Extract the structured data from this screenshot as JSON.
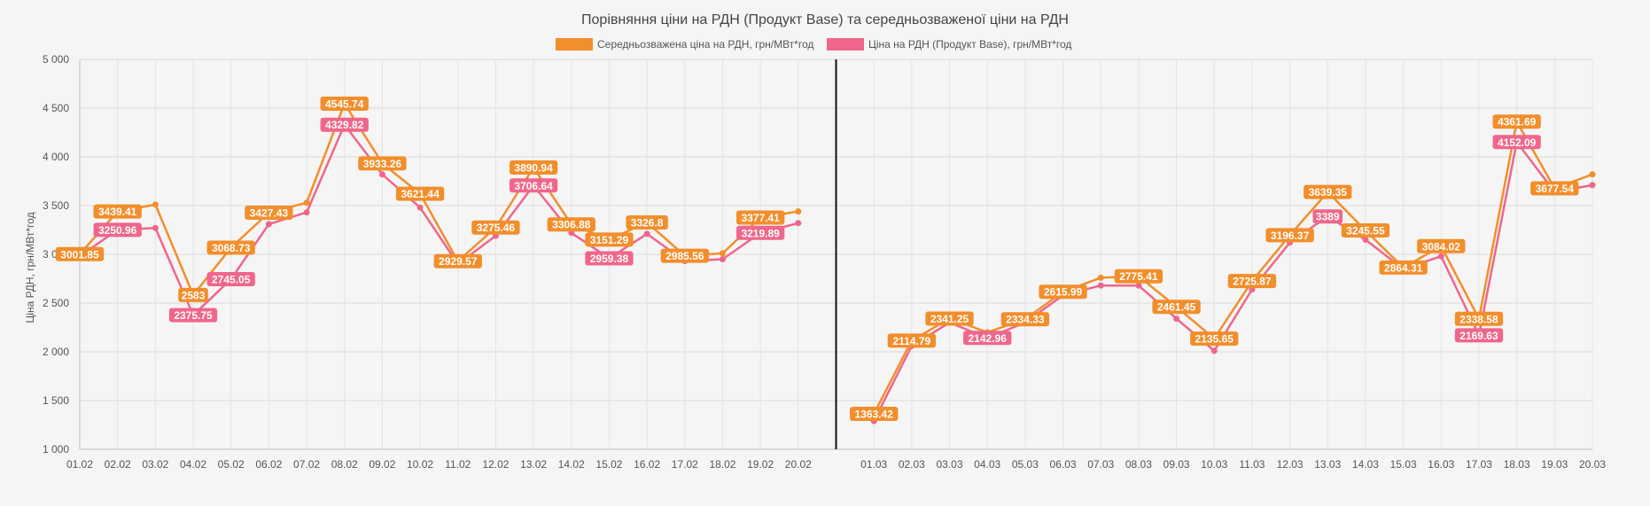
{
  "chart_data": {
    "type": "line",
    "title": "Порівняння ціни на РДН (Продукт Base) та середньозваженої ціни на РДН",
    "ylabel": "Ціна РДН, грн/МВт*год",
    "xlabel": "",
    "ylim": [
      1000,
      5000
    ],
    "yticks": [
      1000,
      1500,
      2000,
      2500,
      3000,
      3500,
      4000,
      4500,
      5000
    ],
    "ytick_labels": [
      "1 000",
      "1 500",
      "2 000",
      "2 500",
      "3 000",
      "3 500",
      "4 000",
      "4 500",
      "5 000"
    ],
    "grid": true,
    "legend_position": "top",
    "categories": [
      "01.02",
      "02.02",
      "03.02",
      "04.02",
      "05.02",
      "06.02",
      "07.02",
      "08.02",
      "09.02",
      "10.02",
      "11.02",
      "12.02",
      "13.02",
      "14.02",
      "15.02",
      "16.02",
      "17.02",
      "18.02",
      "19.02",
      "20.02",
      "",
      "01.03",
      "02.03",
      "03.03",
      "04.03",
      "05.03",
      "06.03",
      "07.03",
      "08.03",
      "09.03",
      "10.03",
      "11.03",
      "12.03",
      "13.03",
      "14.03",
      "15.03",
      "16.03",
      "17.03",
      "18.03",
      "19.03",
      "20.03"
    ],
    "divider_after": "20.02",
    "series": [
      {
        "name": "Середньозважена ціна на РДН, грн/МВт*год",
        "color": "#f28e2b",
        "values": [
          3001.85,
          3439.41,
          3510,
          2583,
          3068.73,
          3427.43,
          3530,
          4545.74,
          3933.26,
          3621.44,
          2929.57,
          3275.46,
          3890.94,
          3306.88,
          3151.29,
          3326.8,
          2985.56,
          3010,
          3377.41,
          3440,
          null,
          1363.42,
          2114.79,
          2341.25,
          2200,
          2334.33,
          2615.99,
          2760,
          2775.41,
          2461.45,
          2135.65,
          2725.87,
          3196.37,
          3639.35,
          3245.55,
          2864.31,
          3084.02,
          2338.58,
          4361.69,
          3677.54,
          3820
        ],
        "labels": [
          "3001.85",
          "3439.41",
          "",
          "2583",
          "3068.73",
          "3427.43",
          "",
          "4545.74",
          "3933.26",
          "3621.44",
          "2929.57",
          "3275.46",
          "3890.94",
          "3306.88",
          "3151.29",
          "3326.8",
          "2985.56",
          "",
          "3377.41",
          "",
          "",
          "1363.42",
          "2114.79",
          "2341.25",
          "",
          "2334.33",
          "2615.99",
          "",
          "2775.41",
          "2461.45",
          "2135.65",
          "2725.87",
          "3196.37",
          "3639.35",
          "3245.55",
          "2864.31",
          "3084.02",
          "2338.58",
          "4361.69",
          "3677.54",
          ""
        ]
      },
      {
        "name": "Ціна на РДН (Продукт Base), грн/МВт*год",
        "color": "#f0668a",
        "values": [
          2980,
          3250.96,
          3270,
          2375.75,
          2745.05,
          3310,
          3430,
          4329.82,
          3820,
          3480,
          2900,
          3190,
          3706.64,
          3220,
          2959.38,
          3210,
          2930,
          2950,
          3219.89,
          3320,
          null,
          1290,
          2060,
          2300,
          2142.96,
          2300,
          2580,
          2680,
          2680,
          2340,
          2010,
          2640,
          3120,
          3389,
          3150,
          2850,
          2980,
          2169.63,
          4152.09,
          3640,
          3710
        ],
        "labels": [
          "",
          "3250.96",
          "",
          "2375.75",
          "2745.05",
          "",
          "",
          "4329.82",
          "",
          "",
          "",
          "",
          "3706.64",
          "",
          "2959.38",
          "",
          "",
          "",
          "3219.89",
          "",
          "",
          "",
          "",
          "",
          "2142.96",
          "",
          "",
          "",
          "",
          "",
          "",
          "",
          "",
          "3389",
          "",
          "",
          "",
          "2169.63",
          "4152.09",
          "",
          ""
        ]
      }
    ]
  }
}
